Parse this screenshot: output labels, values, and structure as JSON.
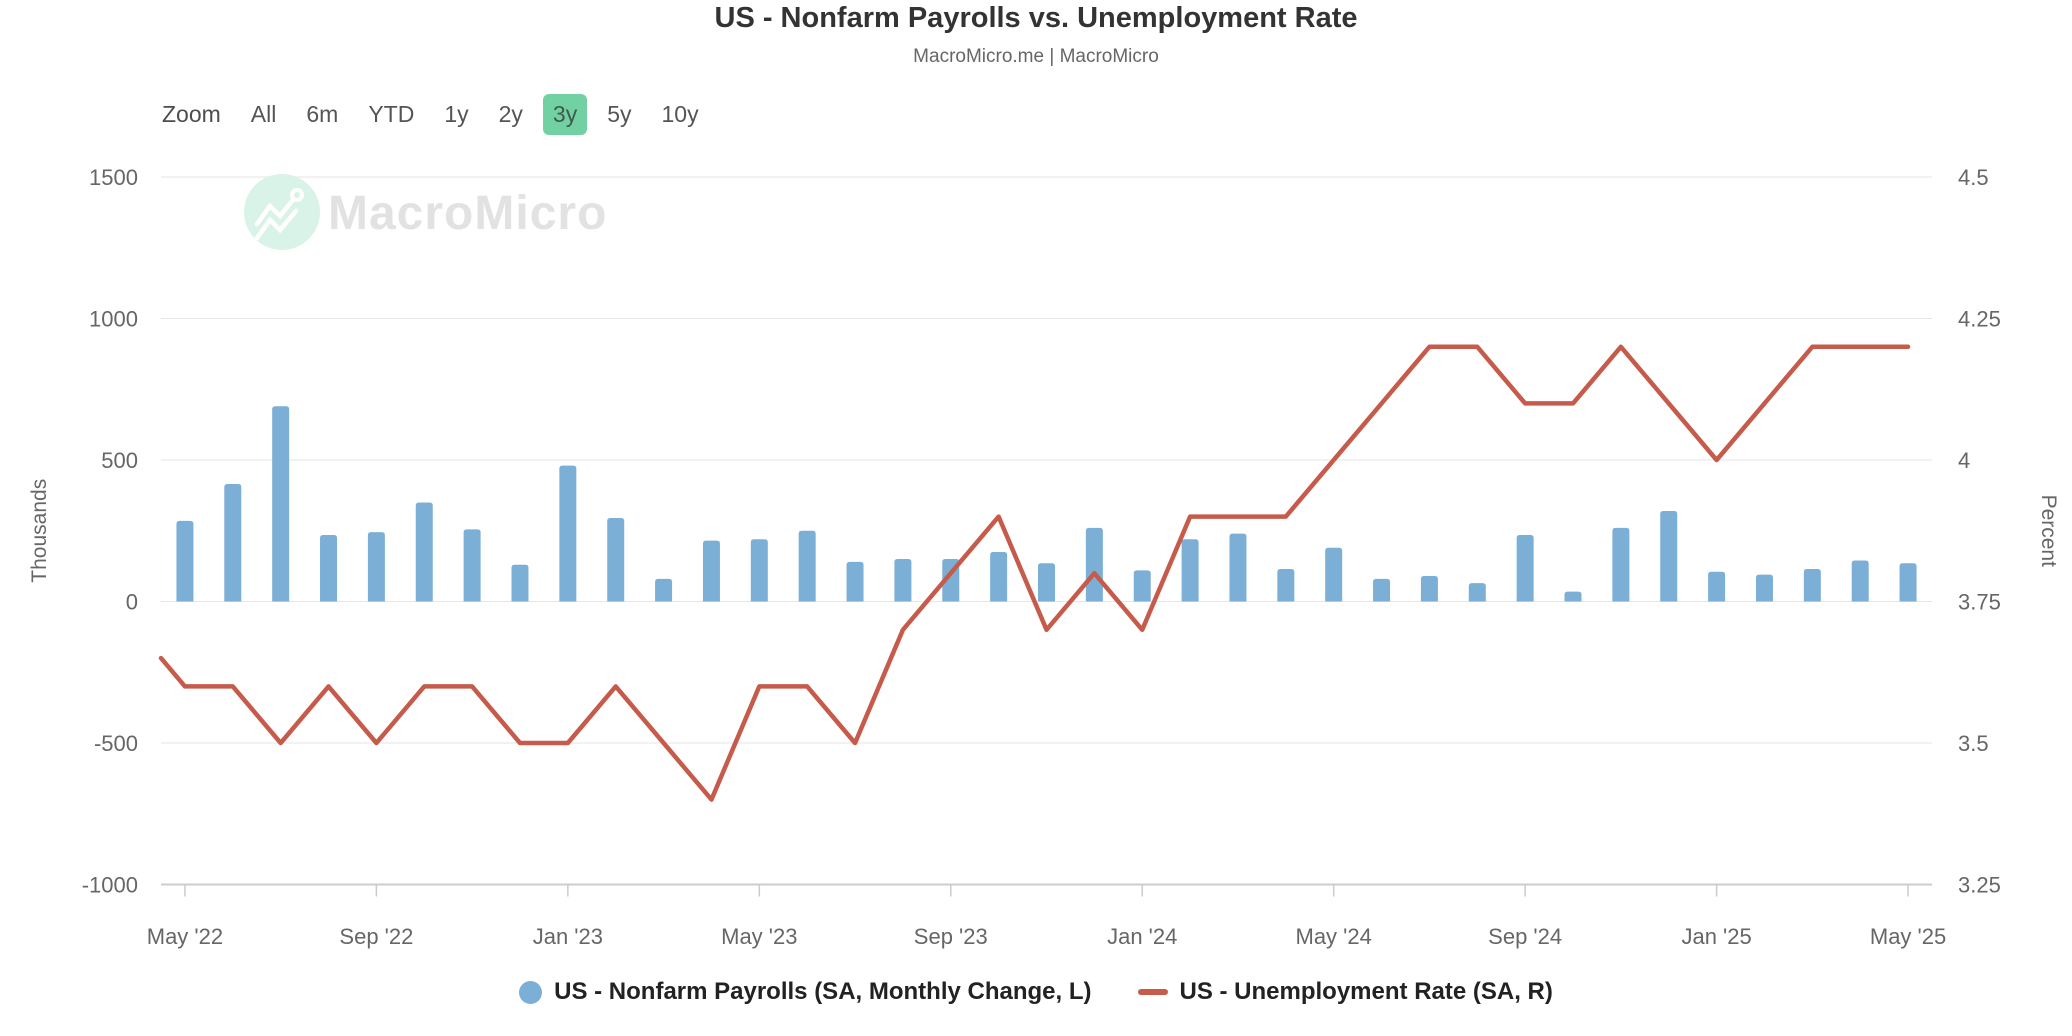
{
  "header": {
    "title": "US - Nonfarm Payrolls vs. Unemployment Rate",
    "subtitle": "MacroMicro.me | MacroMicro"
  },
  "toolbar": {
    "zoom_label": "Zoom",
    "ranges": [
      "All",
      "6m",
      "YTD",
      "1y",
      "2y",
      "3y",
      "5y",
      "10y"
    ],
    "selected": "3y",
    "selected_bg": "#72d1a2"
  },
  "watermark": {
    "text": "MacroMicro",
    "circle_color": "#d9f3e8",
    "glyph_color": "#ffffff",
    "text_color": "#e2e2e2"
  },
  "chart_data": {
    "type": "combo",
    "x": [
      "2022-05",
      "2022-06",
      "2022-07",
      "2022-08",
      "2022-09",
      "2022-10",
      "2022-11",
      "2022-12",
      "2023-01",
      "2023-02",
      "2023-03",
      "2023-04",
      "2023-05",
      "2023-06",
      "2023-07",
      "2023-08",
      "2023-09",
      "2023-10",
      "2023-11",
      "2023-12",
      "2024-01",
      "2024-02",
      "2024-03",
      "2024-04",
      "2024-05",
      "2024-06",
      "2024-07",
      "2024-08",
      "2024-09",
      "2024-10",
      "2024-11",
      "2024-12",
      "2025-01",
      "2025-02",
      "2025-03",
      "2025-04",
      "2025-05"
    ],
    "x_ticks": [
      {
        "i": 0,
        "label": "May '22"
      },
      {
        "i": 4,
        "label": "Sep '22"
      },
      {
        "i": 8,
        "label": "Jan '23"
      },
      {
        "i": 12,
        "label": "May '23"
      },
      {
        "i": 16,
        "label": "Sep '23"
      },
      {
        "i": 20,
        "label": "Jan '24"
      },
      {
        "i": 24,
        "label": "May '24"
      },
      {
        "i": 28,
        "label": "Sep '24"
      },
      {
        "i": 32,
        "label": "Jan '25"
      },
      {
        "i": 36,
        "label": "May '25"
      }
    ],
    "series": [
      {
        "name": "US - Nonfarm Payrolls (SA, Monthly Change, L)",
        "type": "bar",
        "axis": "left",
        "color": "#7cafd6",
        "values": [
          285,
          415,
          690,
          235,
          245,
          350,
          255,
          130,
          480,
          295,
          80,
          215,
          220,
          250,
          140,
          150,
          150,
          175,
          135,
          260,
          110,
          220,
          240,
          115,
          190,
          80,
          90,
          65,
          235,
          35,
          260,
          320,
          105,
          95,
          115,
          145,
          135
        ]
      },
      {
        "name": "US - Unemployment Rate (SA, R)",
        "type": "line",
        "axis": "right",
        "color": "#c65b4b",
        "edge_start": 3.65,
        "values": [
          3.6,
          3.6,
          3.5,
          3.6,
          3.5,
          3.6,
          3.6,
          3.5,
          3.5,
          3.6,
          3.5,
          3.4,
          3.6,
          3.6,
          3.5,
          3.7,
          3.8,
          3.9,
          3.7,
          3.8,
          3.7,
          3.9,
          3.9,
          3.9,
          4.0,
          4.1,
          4.2,
          4.2,
          4.1,
          4.1,
          4.2,
          4.1,
          4.0,
          4.1,
          4.2,
          4.2,
          4.2
        ]
      }
    ],
    "left_axis": {
      "title": "Thousands",
      "min": -1000,
      "max": 1500,
      "ticks": [
        1500,
        1000,
        500,
        0,
        -500,
        -1000
      ]
    },
    "right_axis": {
      "title": "Percent",
      "min": 3.25,
      "max": 4.5,
      "ticks": [
        4.5,
        4.25,
        4,
        3.75,
        3.5,
        3.25
      ]
    },
    "grid": true,
    "grid_color": "#e6e6e6",
    "axis_line_color": "#cccccc",
    "axis_text_color": "#666666",
    "legend_position": "bottom"
  }
}
